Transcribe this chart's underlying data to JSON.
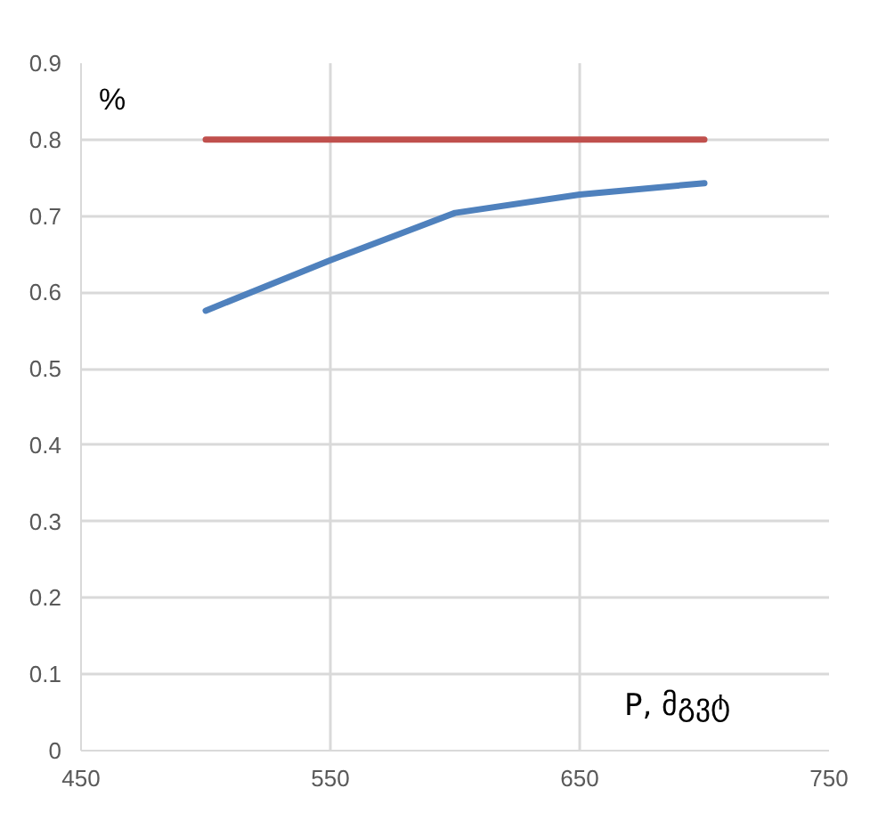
{
  "chart_data": {
    "type": "line",
    "xlabel": "P, მგვტ",
    "ylabel": "%",
    "x": [
      500,
      550,
      600,
      650,
      700
    ],
    "series": [
      {
        "color": "#c0504d",
        "values": [
          0.8,
          0.8,
          0.8,
          0.8,
          0.8
        ]
      },
      {
        "color": "#4f81bd",
        "values": [
          0.576,
          0.642,
          0.704,
          0.728,
          0.743
        ]
      }
    ],
    "xlim": [
      450,
      750
    ],
    "xticks": [
      450,
      550,
      650,
      750
    ],
    "ylim": [
      0,
      0.9
    ],
    "yticks": [
      0,
      0.1,
      0.2,
      0.3,
      0.4,
      0.5,
      0.6,
      0.7,
      0.8,
      0.9
    ],
    "grid": true,
    "marker": "none",
    "line_style": "solid"
  }
}
